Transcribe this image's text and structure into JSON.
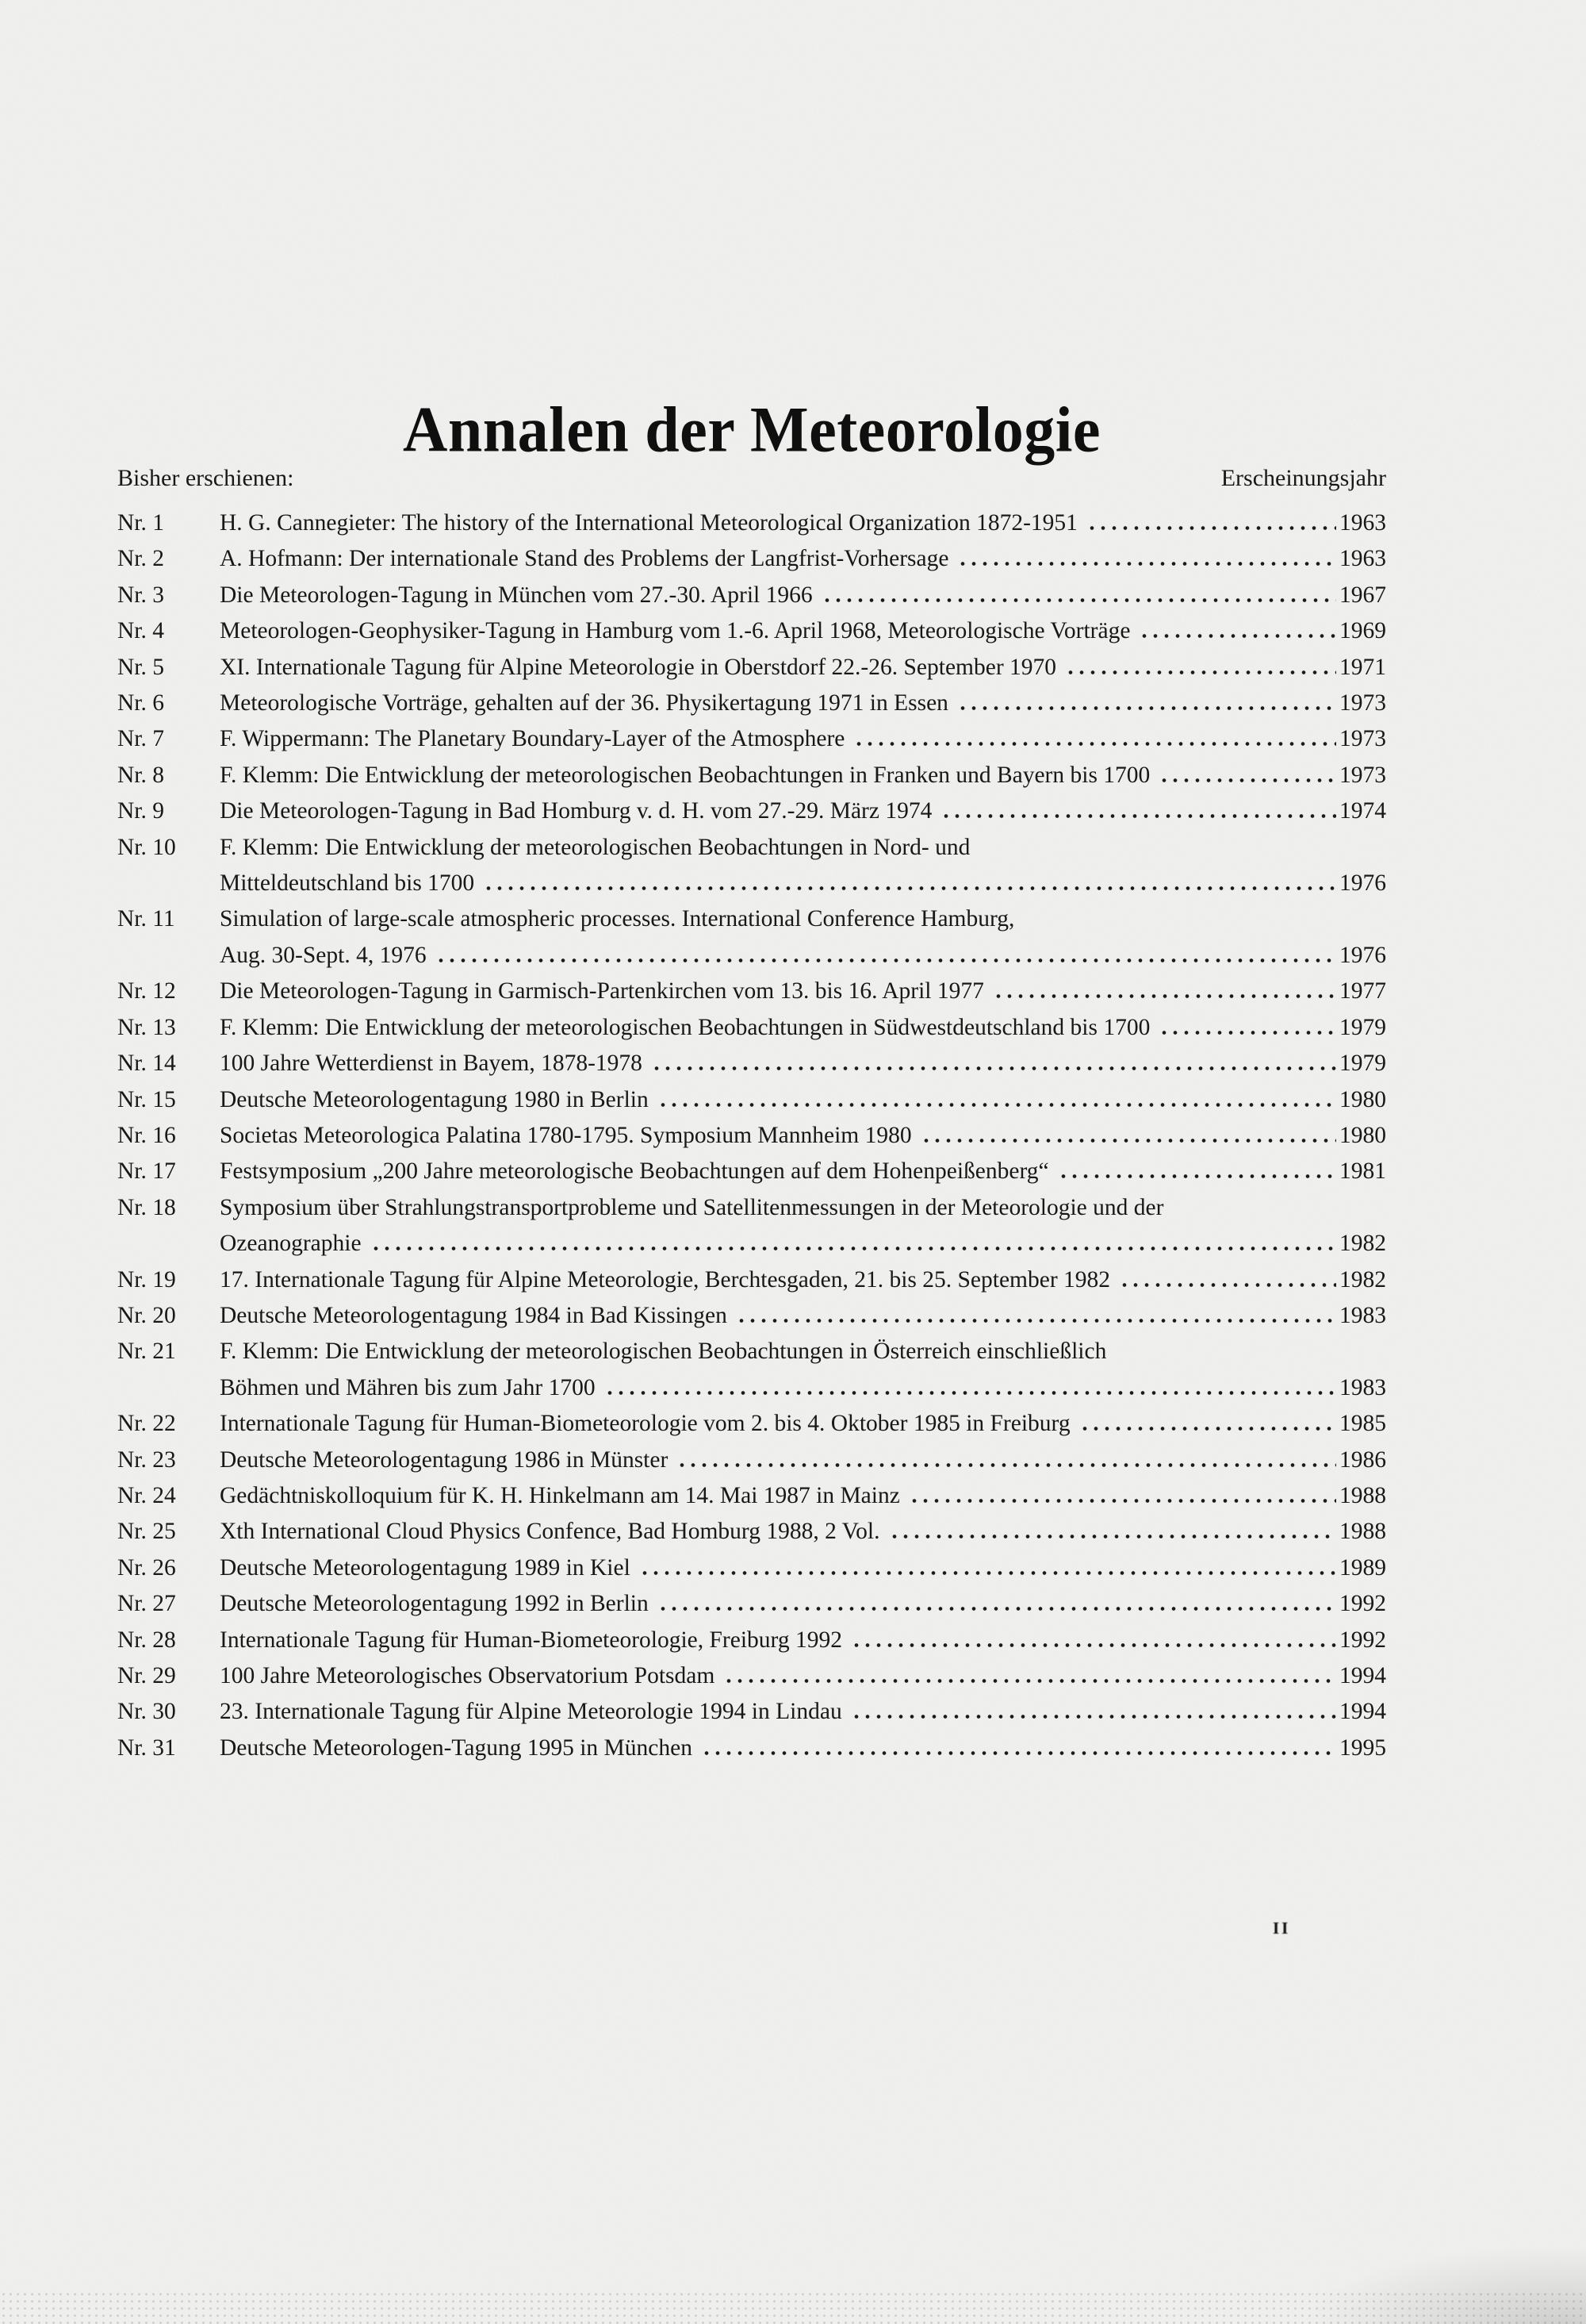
{
  "page": {
    "title": "Annalen der Meteorologie",
    "header": {
      "published_label": "Bisher erschienen:",
      "year_column_label": "Erscheinungsjahr"
    },
    "page_mark": "II"
  },
  "toc": {
    "items": [
      {
        "nr": "Nr. 1",
        "lines": [
          "H. G. Cannegieter: The history of the International Meteorological Organization 1872-1951"
        ],
        "year": "1963"
      },
      {
        "nr": "Nr. 2",
        "lines": [
          "A. Hofmann: Der internationale Stand des Problems der Langfrist-Vorhersage"
        ],
        "year": "1963"
      },
      {
        "nr": "Nr. 3",
        "lines": [
          "Die Meteorologen-Tagung in München vom 27.-30. April 1966"
        ],
        "year": "1967"
      },
      {
        "nr": "Nr. 4",
        "lines": [
          "Meteorologen-Geophysiker-Tagung in Hamburg vom 1.-6. April 1968, Meteorologische Vorträge"
        ],
        "year": "1969"
      },
      {
        "nr": "Nr. 5",
        "lines": [
          "XI. Internationale Tagung für Alpine Meteorologie in Oberstdorf 22.-26. September 1970"
        ],
        "year": "1971"
      },
      {
        "nr": "Nr. 6",
        "lines": [
          "Meteorologische Vorträge, gehalten auf der 36. Physikertagung 1971 in Essen"
        ],
        "year": "1973"
      },
      {
        "nr": "Nr. 7",
        "lines": [
          "F. Wippermann: The Planetary Boundary-Layer of the Atmosphere"
        ],
        "year": "1973"
      },
      {
        "nr": "Nr. 8",
        "lines": [
          "F. Klemm: Die Entwicklung der meteorologischen Beobachtungen in Franken und Bayern bis 1700"
        ],
        "year": "1973"
      },
      {
        "nr": "Nr. 9",
        "lines": [
          "Die Meteorologen-Tagung in Bad Homburg v. d. H. vom 27.-29. März 1974"
        ],
        "year": "1974"
      },
      {
        "nr": "Nr. 10",
        "lines": [
          "F. Klemm: Die Entwicklung der meteorologischen Beobachtungen in Nord- und",
          "Mitteldeutschland bis 1700"
        ],
        "year": "1976"
      },
      {
        "nr": "Nr. 11",
        "lines": [
          "Simulation of large-scale atmospheric processes. International Conference Hamburg,",
          "Aug. 30-Sept. 4, 1976"
        ],
        "year": "1976"
      },
      {
        "nr": "Nr. 12",
        "lines": [
          "Die Meteorologen-Tagung in Garmisch-Partenkirchen vom 13. bis 16. April 1977"
        ],
        "year": "1977"
      },
      {
        "nr": "Nr. 13",
        "lines": [
          "F. Klemm: Die Entwicklung der meteorologischen Beobachtungen in Südwestdeutschland bis 1700"
        ],
        "year": "1979"
      },
      {
        "nr": "Nr. 14",
        "lines": [
          "100 Jahre Wetterdienst in Bayem, 1878-1978"
        ],
        "year": "1979"
      },
      {
        "nr": "Nr. 15",
        "lines": [
          "Deutsche Meteorologentagung 1980 in Berlin"
        ],
        "year": "1980"
      },
      {
        "nr": "Nr. 16",
        "lines": [
          "Societas Meteorologica Palatina 1780-1795. Symposium Mannheim 1980"
        ],
        "year": "1980"
      },
      {
        "nr": "Nr. 17",
        "lines": [
          "Festsymposium „200 Jahre meteorologische Beobachtungen auf dem Hohenpeißenberg“"
        ],
        "year": "1981"
      },
      {
        "nr": "Nr. 18",
        "lines": [
          "Symposium über Strahlungstransportprobleme und Satellitenmessungen in der Meteorologie und der",
          "Ozeanographie"
        ],
        "year": "1982"
      },
      {
        "nr": "Nr. 19",
        "lines": [
          "17. Internationale Tagung für Alpine Meteorologie, Berchtesgaden, 21. bis 25. September 1982"
        ],
        "year": "1982"
      },
      {
        "nr": "Nr. 20",
        "lines": [
          "Deutsche Meteorologentagung 1984 in Bad Kissingen"
        ],
        "year": "1983"
      },
      {
        "nr": "Nr. 21",
        "lines": [
          "F. Klemm: Die Entwicklung der meteorologischen Beobachtungen in Österreich einschließlich",
          "Böhmen und Mähren bis zum Jahr 1700"
        ],
        "year": "1983"
      },
      {
        "nr": "Nr. 22",
        "lines": [
          "Internationale Tagung für Human-Biometeorologie vom 2. bis 4. Oktober 1985 in Freiburg"
        ],
        "year": "1985"
      },
      {
        "nr": "Nr. 23",
        "lines": [
          "Deutsche Meteorologentagung 1986 in Münster"
        ],
        "year": "1986"
      },
      {
        "nr": "Nr. 24",
        "lines": [
          "Gedächtniskolloquium für K. H. Hinkelmann am 14. Mai 1987 in Mainz"
        ],
        "year": "1988"
      },
      {
        "nr": "Nr. 25",
        "lines": [
          "Xth International Cloud Physics Confence, Bad Homburg 1988, 2 Vol."
        ],
        "year": "1988"
      },
      {
        "nr": "Nr. 26",
        "lines": [
          "Deutsche Meteorologentagung 1989 in Kiel"
        ],
        "year": "1989"
      },
      {
        "nr": "Nr. 27",
        "lines": [
          "Deutsche Meteorologentagung 1992 in Berlin"
        ],
        "year": "1992"
      },
      {
        "nr": "Nr. 28",
        "lines": [
          "Internationale Tagung für Human-Biometeorologie, Freiburg 1992"
        ],
        "year": "1992"
      },
      {
        "nr": "Nr. 29",
        "lines": [
          "100 Jahre Meteorologisches Observatorium Potsdam"
        ],
        "year": "1994"
      },
      {
        "nr": "Nr. 30",
        "lines": [
          "23. Internationale Tagung für Alpine Meteorologie 1994 in Lindau"
        ],
        "year": "1994"
      },
      {
        "nr": "Nr. 31",
        "lines": [
          "Deutsche Meteorologen-Tagung 1995 in München"
        ],
        "year": "1995"
      }
    ]
  }
}
